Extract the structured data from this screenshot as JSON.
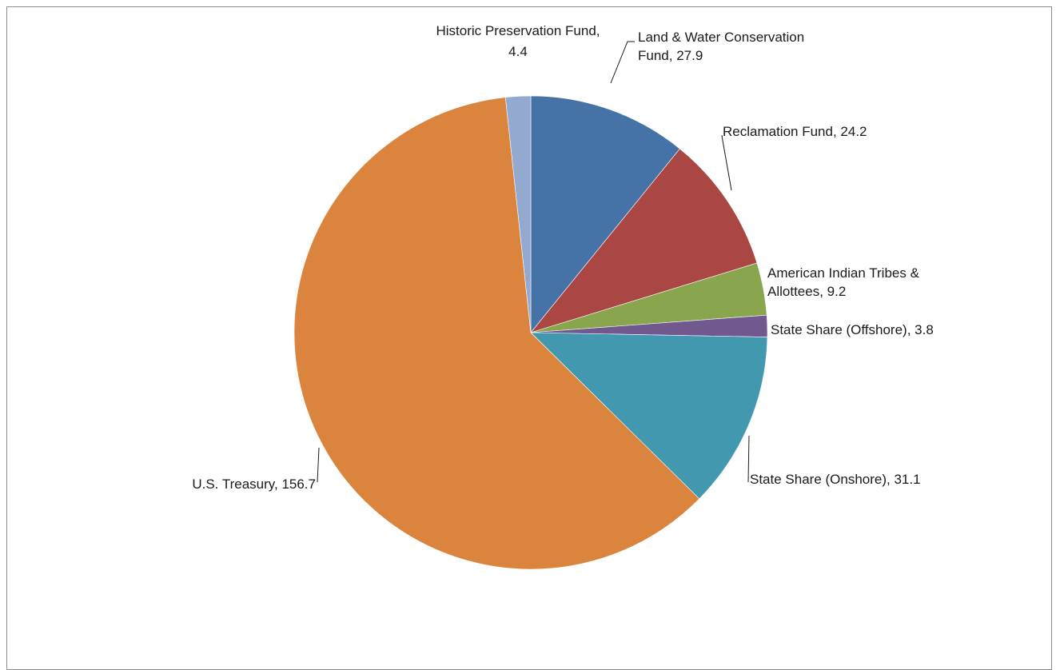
{
  "chart_data": {
    "type": "pie",
    "title": "",
    "slices": [
      {
        "name": "Land & Water Conservation Fund",
        "value": 27.9,
        "color": "#4572a7"
      },
      {
        "name": "Reclamation Fund",
        "value": 24.2,
        "color": "#aa4643"
      },
      {
        "name": "American Indian Tribes & Allottees",
        "value": 9.2,
        "color": "#89a54e"
      },
      {
        "name": "State Share (Offshore)",
        "value": 3.8,
        "color": "#71588f"
      },
      {
        "name": "State Share (Onshore)",
        "value": 31.1,
        "color": "#4198af"
      },
      {
        "name": "U.S. Treasury",
        "value": 156.7,
        "color": "#db843d"
      },
      {
        "name": "Historic Preservation Fund",
        "value": 4.4,
        "color": "#93a9cf"
      }
    ],
    "labels": [
      {
        "lines": [
          "Land & Water Conservation",
          "Fund, 27.9"
        ]
      },
      {
        "lines": [
          "Reclamation Fund, 24.2"
        ]
      },
      {
        "lines": [
          "American Indian Tribes &",
          "Allottees, 9.2"
        ]
      },
      {
        "lines": [
          "State Share (Offshore), 3.8"
        ]
      },
      {
        "lines": [
          "State Share (Onshore), 31.1"
        ]
      },
      {
        "lines": [
          "U.S. Treasury, 156.7"
        ]
      },
      {
        "lines": [
          "Historic Preservation Fund,",
          "4.4"
        ]
      }
    ],
    "legend": "none"
  }
}
